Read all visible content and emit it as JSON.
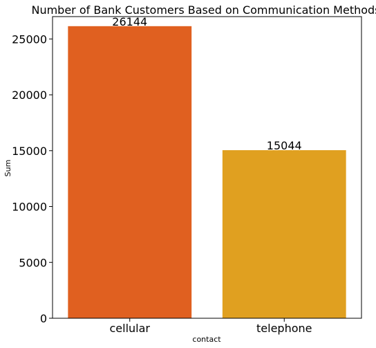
{
  "chart_data": {
    "type": "bar",
    "title": "Number of Bank Customers Based on Communication Methods",
    "xlabel": "contact",
    "ylabel": "Sum",
    "categories": [
      "cellular",
      "telephone"
    ],
    "values": [
      26144,
      15044
    ],
    "data_labels": [
      "26144",
      "15044"
    ],
    "ylim": [
      0,
      27000
    ],
    "yticks": [
      0,
      5000,
      10000,
      15000,
      20000,
      25000
    ],
    "ytick_labels": [
      "0",
      "5000",
      "10000",
      "15000",
      "20000",
      "25000"
    ],
    "colors": [
      "#e06020",
      "#e0a020"
    ],
    "grid": false,
    "legend": "none"
  }
}
